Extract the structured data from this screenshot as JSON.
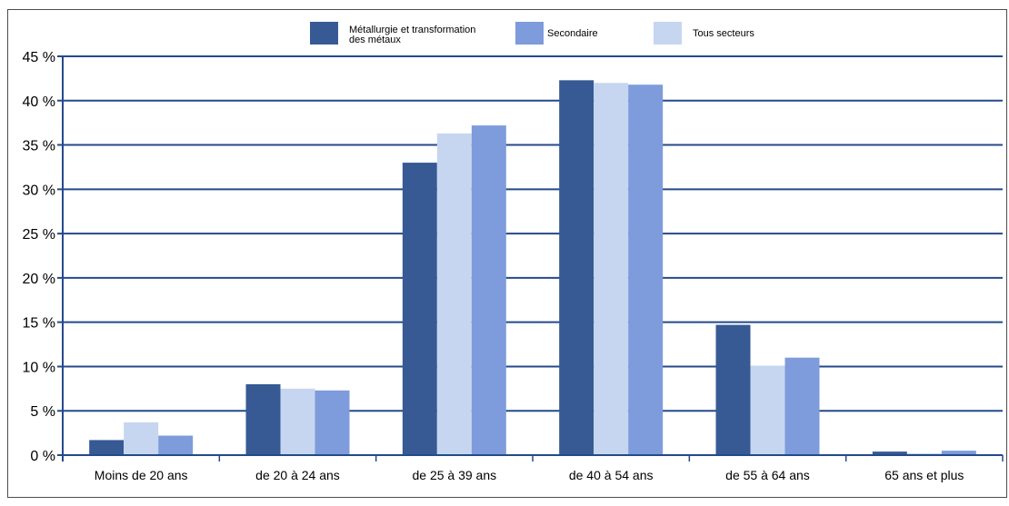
{
  "chart_data": {
    "type": "bar",
    "categories": [
      "Moins de 20 ans",
      "de 20 à 24 ans",
      "de 25 à 39 ans",
      "de 40 à 54 ans",
      "de 55 à 64 ans",
      "65 ans et plus"
    ],
    "series": [
      {
        "name": "Métallurgie et transformation des métaux",
        "color": "#375a95",
        "values": [
          1.7,
          8.0,
          33.0,
          42.3,
          14.7,
          0.4
        ]
      },
      {
        "name": "Tous secteurs",
        "color": "#c6d6f0",
        "values": [
          3.7,
          7.5,
          36.3,
          42.0,
          10.1,
          0.2
        ]
      },
      {
        "name": "Secondaire",
        "color": "#7e9bdb",
        "values": [
          2.2,
          7.3,
          37.2,
          41.8,
          11.0,
          0.5
        ]
      }
    ],
    "legend": {
      "entries": [
        {
          "lines": [
            "Métallurgie et transformation",
            "des métaux"
          ],
          "color": "#375a95"
        },
        {
          "lines": [
            "Secondaire"
          ],
          "color": "#7e9bdb"
        },
        {
          "lines": [
            "Tous secteurs"
          ],
          "color": "#c6d6f0"
        }
      ],
      "placement": "top"
    },
    "y_ticks": [
      "0 %",
      "5 %",
      "10 %",
      "15 %",
      "20 %",
      "25 %",
      "30 %",
      "35 %",
      "40 %",
      "45 %"
    ],
    "ylim": [
      0,
      45
    ],
    "grid": true,
    "title": "",
    "xlabel": "",
    "ylabel": ""
  }
}
